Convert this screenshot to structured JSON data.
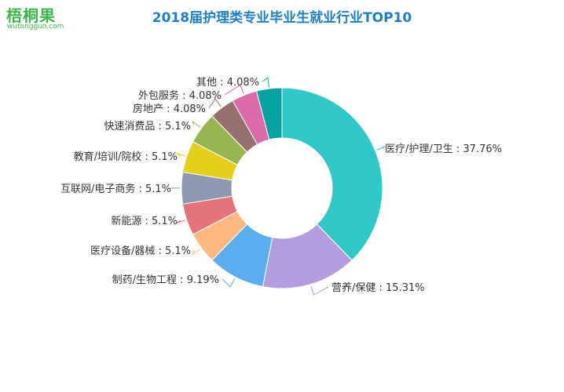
{
  "logo": {
    "name": "梧桐果",
    "url": "wutongguo.com"
  },
  "colors": {
    "title": "#1f7fc4",
    "logo": "#3cb549",
    "slices": [
      "#2ec8c8",
      "#b39ddf",
      "#5aaef0",
      "#ffb980",
      "#e5737a",
      "#8d98b3",
      "#e4d018",
      "#97b552",
      "#95706d",
      "#dc69aa",
      "#07a2a4"
    ]
  },
  "chart_data": {
    "type": "pie",
    "subtype": "donut",
    "title": "2018届护理类专业毕业生就业行业TOP10",
    "categories": [
      "医疗/护理/卫生",
      "营养/保健",
      "制药/生物工程",
      "医疗设备/器械",
      "新能源",
      "互联网/电子商务",
      "教育/培训/院校",
      "快速消费品",
      "房地产",
      "外包服务",
      "其他"
    ],
    "values": [
      37.76,
      15.31,
      9.19,
      5.1,
      5.1,
      5.1,
      5.1,
      5.1,
      4.08,
      4.08,
      4.08
    ],
    "labels": [
      "医疗/护理/卫生 : 37.76%",
      "营养/保健 : 15.31%",
      "制药/生物工程 : 9.19%",
      "医疗设备/器械 : 5.1%",
      "新能源 : 5.1%",
      "互联网/电子商务 : 5.1%",
      "教育/培训/院校 : 5.1%",
      "快速消费品 : 5.1%",
      "房地产 : 4.08%",
      "外包服务 : 4.08%",
      "其他 : 4.08%"
    ]
  }
}
